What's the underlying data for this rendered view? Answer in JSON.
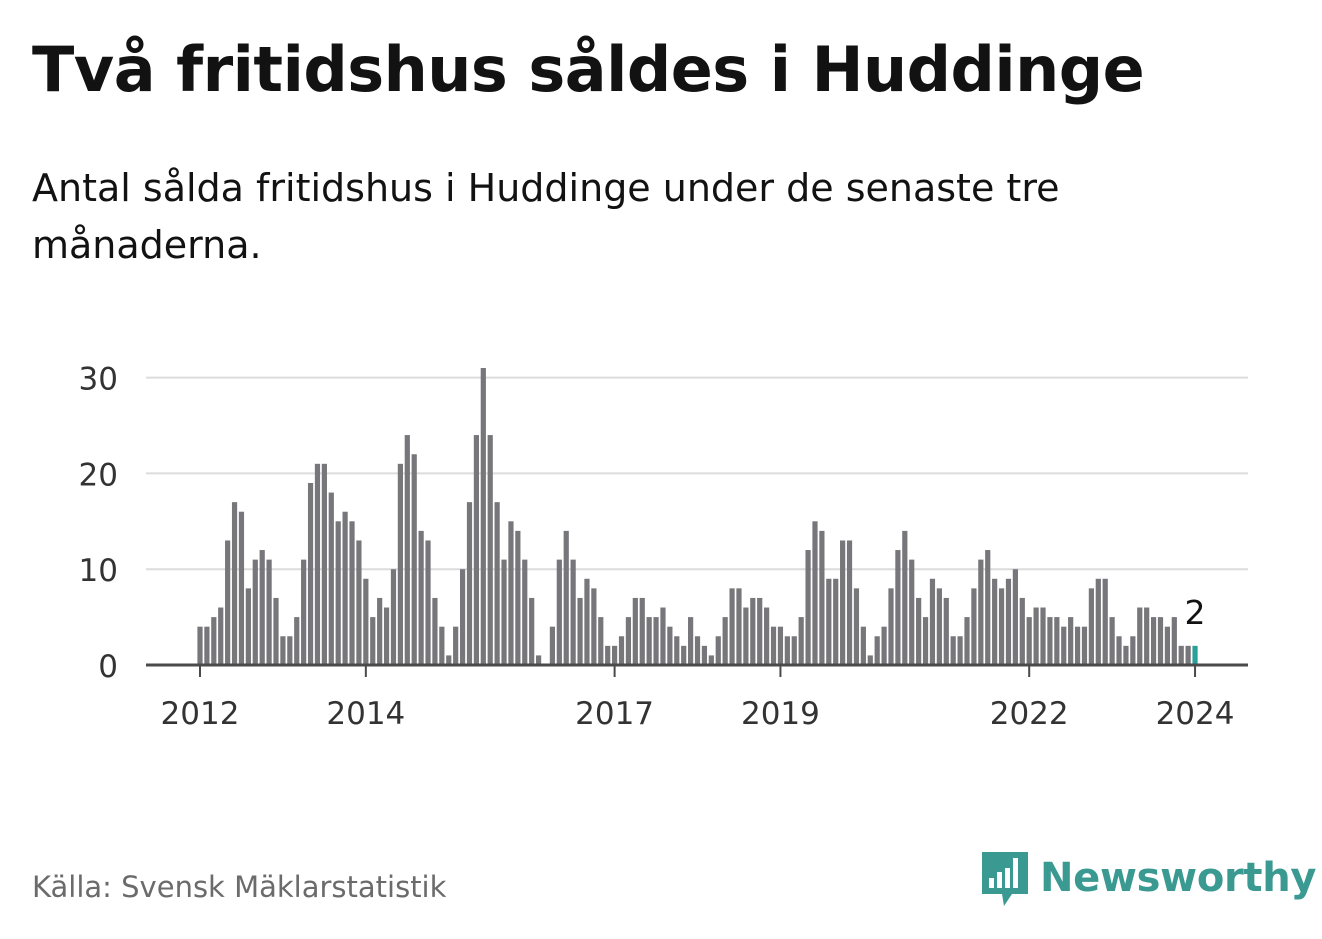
{
  "header": {
    "title": "Två fritidshus såldes i Huddinge",
    "subtitle": "Antal sålda fritidshus i Huddinge under de senaste tre månaderna."
  },
  "footer": {
    "source": "Källa: Svensk Mäklarstatistik",
    "brand": "Newsworthy",
    "brand_icon": "newsworthy-logo-icon"
  },
  "colors": {
    "bar": "#77767b",
    "highlight": "#2aa198",
    "grid": "#dcdcdc",
    "axis": "#4a4a4a",
    "brand": "#3a9a92"
  },
  "chart_data": {
    "type": "bar",
    "title": "Två fritidshus såldes i Huddinge",
    "xlabel": "",
    "ylabel": "",
    "ylim": [
      0,
      30
    ],
    "yticks": [
      0,
      10,
      20,
      30
    ],
    "xtick_labels": [
      {
        "label": "2012",
        "index": 0
      },
      {
        "label": "2014",
        "index": 24
      },
      {
        "label": "2017",
        "index": 60
      },
      {
        "label": "2019",
        "index": 84
      },
      {
        "label": "2022",
        "index": 120
      },
      {
        "label": "2024",
        "index": 144
      }
    ],
    "start": "2012-01",
    "frequency": "monthly",
    "values": [
      4,
      4,
      5,
      6,
      13,
      17,
      16,
      8,
      11,
      12,
      11,
      7,
      3,
      3,
      5,
      11,
      19,
      21,
      21,
      18,
      15,
      16,
      15,
      13,
      9,
      5,
      7,
      6,
      10,
      21,
      24,
      22,
      14,
      13,
      7,
      4,
      1,
      4,
      10,
      17,
      24,
      31,
      24,
      17,
      11,
      15,
      14,
      11,
      7,
      1,
      0,
      4,
      11,
      14,
      11,
      7,
      9,
      8,
      5,
      2,
      2,
      3,
      5,
      7,
      7,
      5,
      5,
      6,
      4,
      3,
      2,
      5,
      3,
      2,
      1,
      3,
      5,
      8,
      8,
      6,
      7,
      7,
      6,
      4,
      4,
      3,
      3,
      5,
      12,
      15,
      14,
      9,
      9,
      13,
      13,
      8,
      4,
      1,
      3,
      4,
      8,
      12,
      14,
      11,
      7,
      5,
      9,
      8,
      7,
      3,
      3,
      5,
      8,
      11,
      12,
      9,
      8,
      9,
      10,
      7,
      5,
      6,
      6,
      5,
      5,
      4,
      5,
      4,
      4,
      8,
      9,
      9,
      5,
      3,
      2,
      3,
      6,
      6,
      5,
      5,
      4,
      5,
      2,
      2,
      2
    ],
    "highlight_index": 144,
    "annotation": {
      "index": 144,
      "text": "2"
    }
  }
}
